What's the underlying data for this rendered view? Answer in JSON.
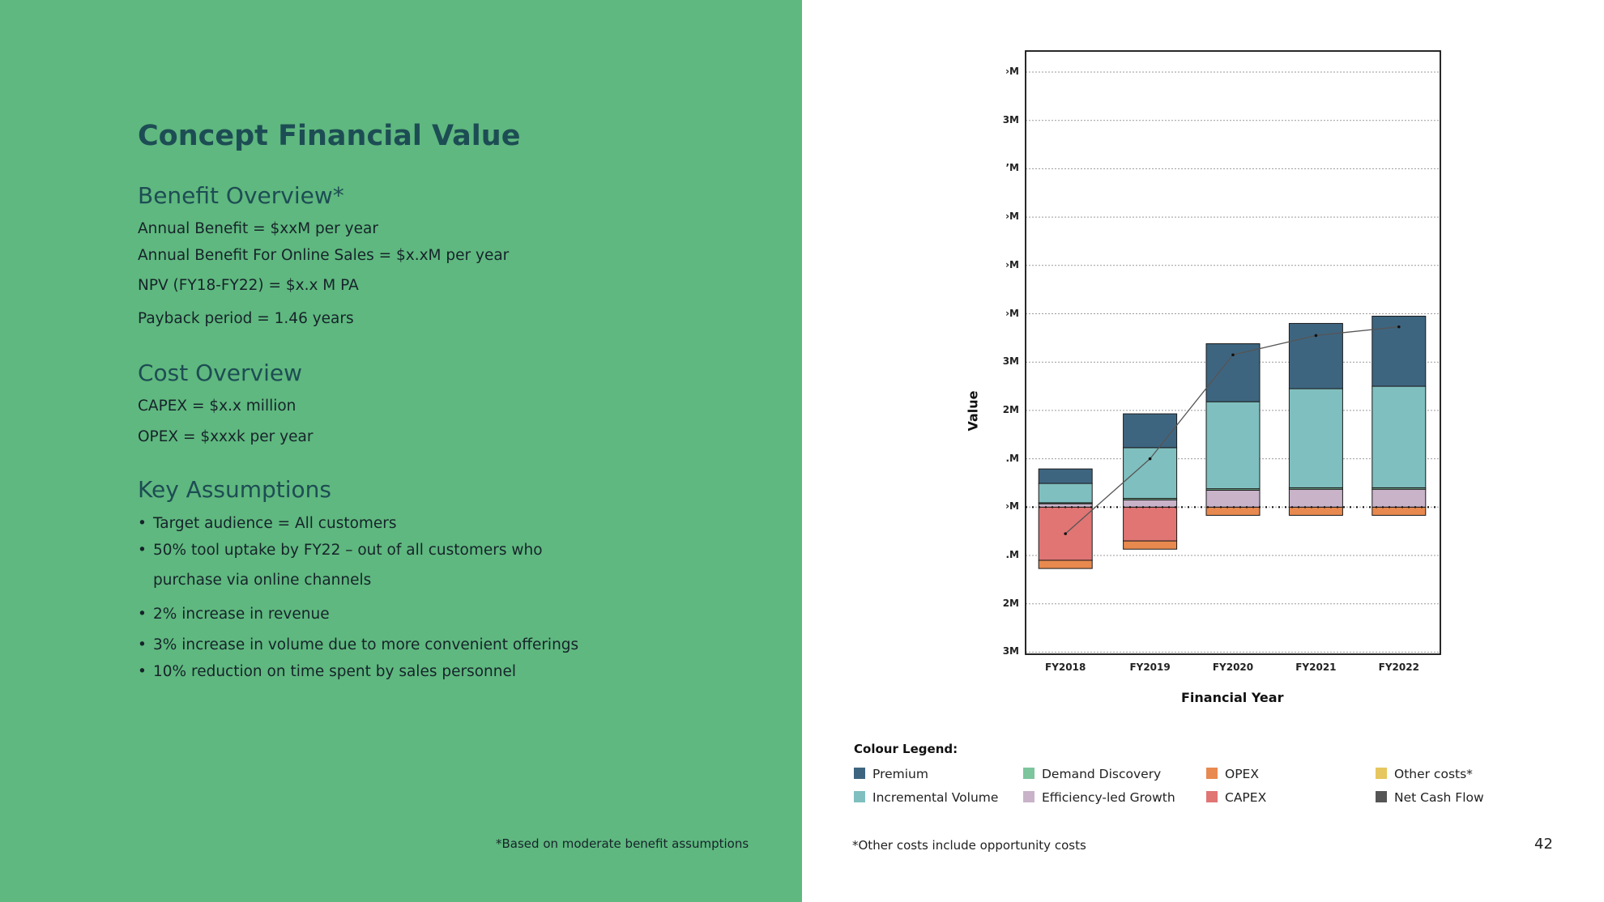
{
  "left": {
    "title": "Concept Financial Value",
    "benefit": {
      "heading": "Benefit Overview*",
      "lines": [
        "Annual Benefit = $xxM per year",
        "Annual Benefit For Online Sales = $x.xM per year",
        "NPV (FY18-FY22) = $x.x M PA",
        "Payback period = 1.46 years"
      ]
    },
    "cost": {
      "heading": "Cost Overview",
      "lines": [
        "CAPEX = $x.x million",
        "OPEX = $xxxk per year"
      ]
    },
    "assumptions": {
      "heading": "Key Assumptions",
      "bullet_glyph": "•",
      "items": [
        "Target audience = All customers",
        "50% tool uptake by FY22 – out of all customers who",
        "purchase via online channels",
        "2% increase in revenue",
        "3% increase in volume due to more convenient offerings",
        "10% reduction on time spent by sales personnel"
      ]
    },
    "footnote": "*Based on moderate benefit assumptions"
  },
  "chart_data": {
    "type": "bar",
    "stacked": true,
    "categories": [
      "FY2018",
      "FY2019",
      "FY2020",
      "FY2021",
      "FY2022"
    ],
    "xlabel": "Financial Year",
    "ylabel": "Value",
    "ytick_labels": [
      "›M",
      "3M",
      "’M",
      "›M",
      "›M",
      "›M",
      "3M",
      "2M",
      ".M",
      "›M",
      ".M",
      "2M",
      "3M"
    ],
    "ylim": [
      -3,
      9.5
    ],
    "series": [
      {
        "name": "CAPEX",
        "color": "#e07574",
        "values": [
          -1.1,
          -0.7,
          0,
          0,
          0
        ]
      },
      {
        "name": "OPEX",
        "color": "#e8894f",
        "values": [
          -0.17,
          -0.17,
          -0.17,
          -0.17,
          -0.17
        ]
      },
      {
        "name": "Efficiency-led Growth",
        "color": "#c8b3c9",
        "values": [
          0.07,
          0.15,
          0.35,
          0.37,
          0.37
        ]
      },
      {
        "name": "Demand Discovery",
        "color": "#7cc59d",
        "values": [
          0.02,
          0.03,
          0.03,
          0.03,
          0.03
        ]
      },
      {
        "name": "Incremental Volume",
        "color": "#80bfbf",
        "values": [
          0.4,
          1.05,
          1.8,
          2.05,
          2.1
        ]
      },
      {
        "name": "Premium",
        "color": "#3e6580",
        "values": [
          0.3,
          0.7,
          1.2,
          1.35,
          1.45
        ]
      }
    ],
    "net_cash_flow": {
      "name": "Net Cash Flow",
      "color": "#555555",
      "values": [
        -0.55,
        1.0,
        3.15,
        3.55,
        3.73
      ]
    },
    "zero_line": 0,
    "grid": true
  },
  "legend": {
    "title": "Colour Legend:",
    "items": [
      {
        "label": "Premium",
        "color": "#3e6580"
      },
      {
        "label": "Incremental Volume",
        "color": "#80bfbf"
      },
      {
        "label": "Demand Discovery",
        "color": "#7cc59d"
      },
      {
        "label": "Efficiency-led Growth",
        "color": "#c8b3c9"
      },
      {
        "label": "OPEX",
        "color": "#e8894f"
      },
      {
        "label": "CAPEX",
        "color": "#e07574"
      },
      {
        "label": "Other costs*",
        "color": "#e6c65e"
      },
      {
        "label": "Net Cash Flow",
        "color": "#555555"
      }
    ]
  },
  "footnote_right": "*Other costs include opportunity costs",
  "page_number": "42"
}
